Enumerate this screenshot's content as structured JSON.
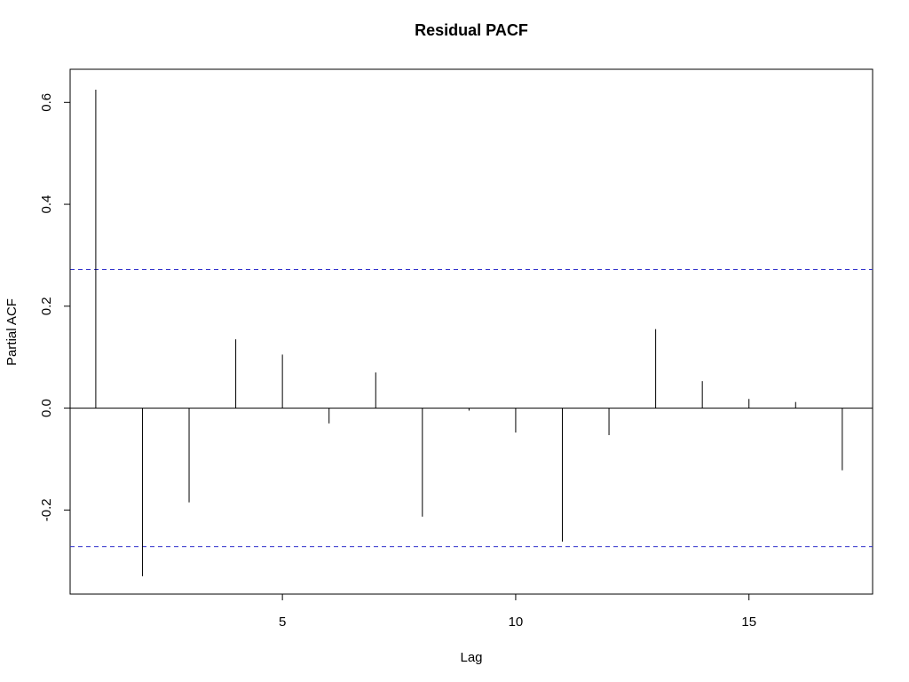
{
  "chart_data": {
    "type": "bar",
    "title": "Residual PACF",
    "xlabel": "Lag",
    "ylabel": "Partial ACF",
    "xlim": [
      0.45,
      17.65
    ],
    "ylim": [
      -0.365,
      0.665
    ],
    "x_ticks": [
      5,
      10,
      15
    ],
    "y_ticks": [
      -0.2,
      0.0,
      0.2,
      0.4,
      0.6
    ],
    "y_tick_labels": [
      "-0.2",
      "0.0",
      "0.2",
      "0.4",
      "0.6"
    ],
    "x_tick_labels": [
      "5",
      "10",
      "15"
    ],
    "lags": [
      1,
      2,
      3,
      4,
      5,
      6,
      7,
      8,
      9,
      10,
      11,
      12,
      13,
      14,
      15,
      16,
      17
    ],
    "values": [
      0.625,
      -0.33,
      -0.185,
      0.135,
      0.105,
      -0.03,
      0.07,
      -0.213,
      -0.005,
      -0.048,
      -0.262,
      -0.053,
      0.155,
      0.053,
      0.018,
      0.012,
      -0.122
    ],
    "confidence_bound": 0.272,
    "grid": false,
    "colors": {
      "bars": "#000000",
      "zero_line": "#000000",
      "confidence_lines": "#3333cc"
    }
  }
}
